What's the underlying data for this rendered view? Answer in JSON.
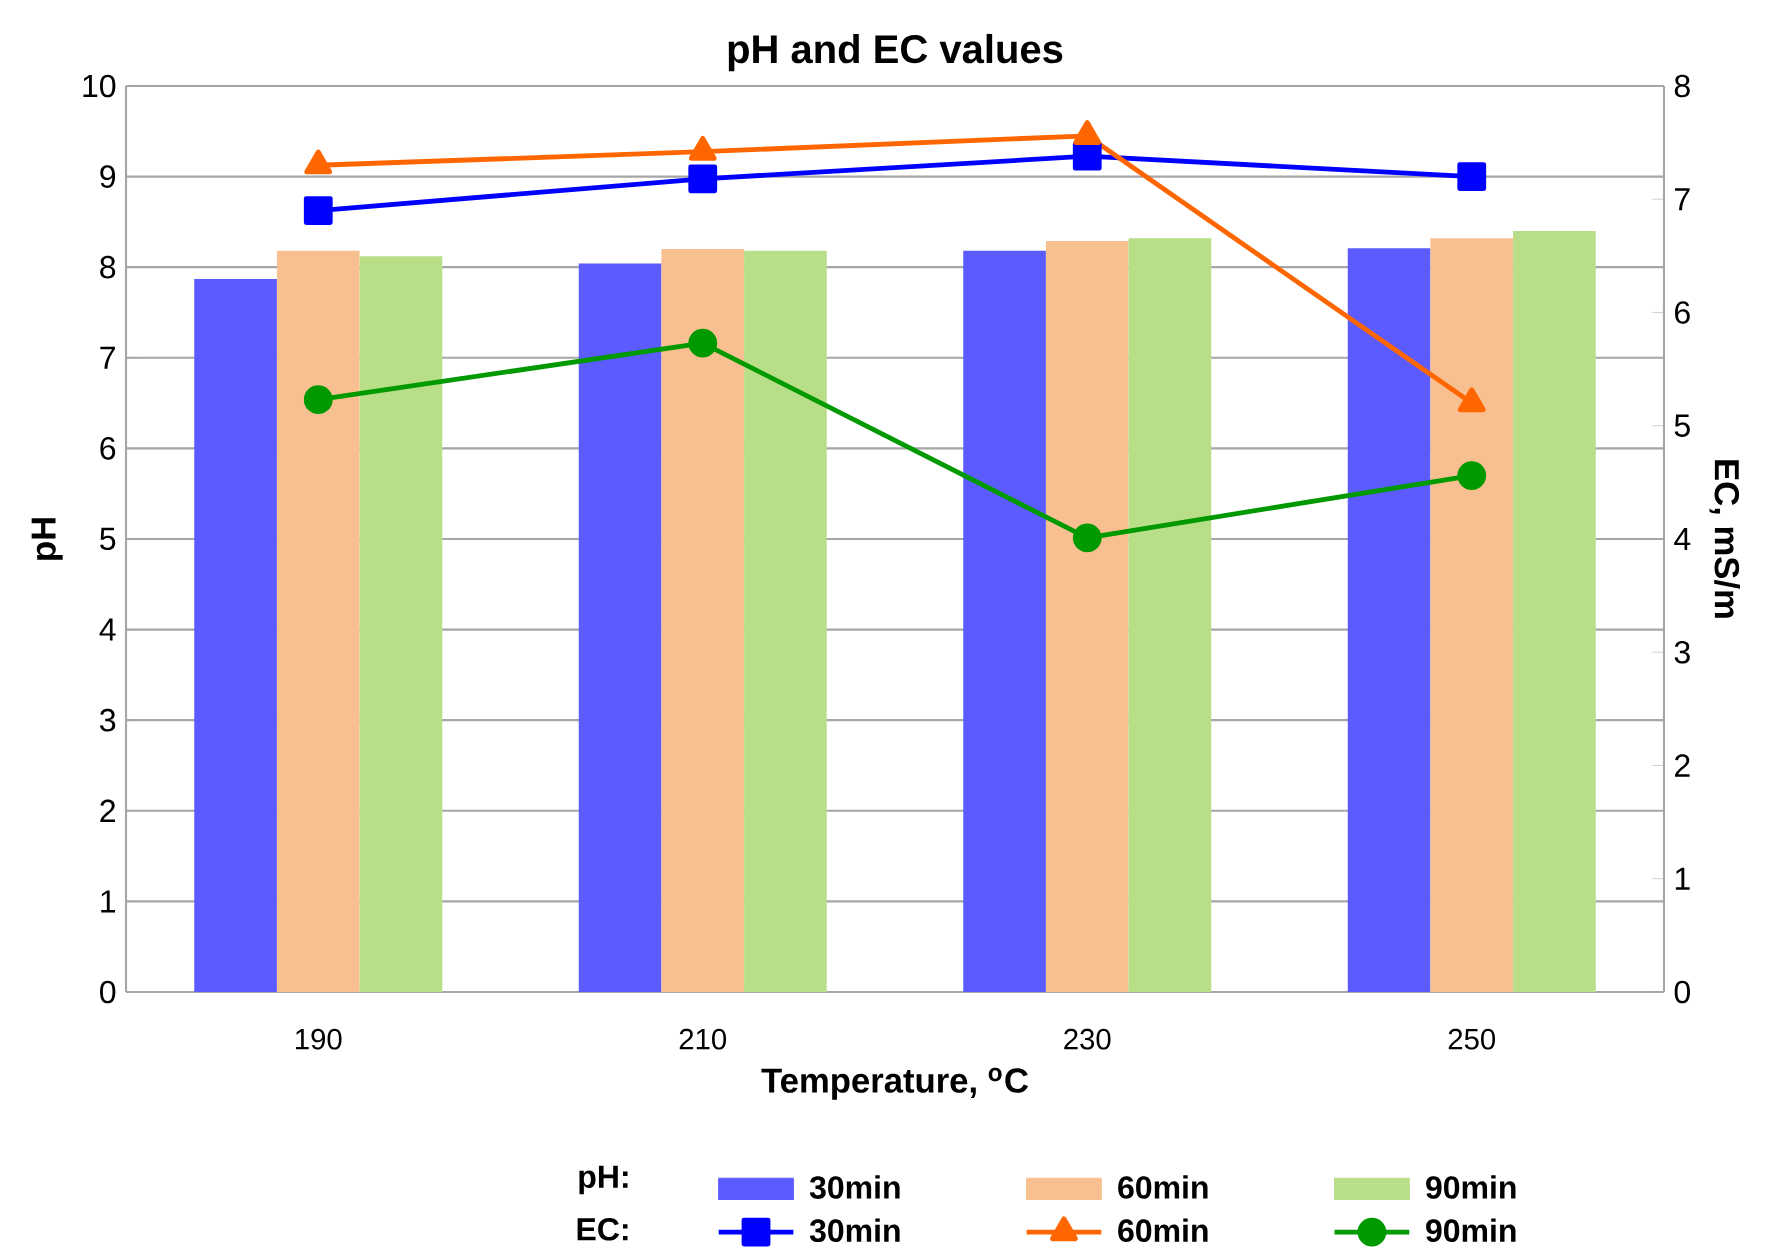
{
  "chart_data": {
    "type": "bar",
    "title": "pH and EC values",
    "xlabel": "Temperature, $^{o}$C",
    "ylabel": "pH",
    "y2label": "EC, mS/m",
    "categories": [
      "190",
      "210",
      "230",
      "250"
    ],
    "series": [
      {
        "name": "30min",
        "color": "#5b5bff",
        "values": [
          7.87,
          8.04,
          8.18,
          8.21
        ]
      },
      {
        "name": "60min",
        "color": "#f8c090",
        "values": [
          8.18,
          8.2,
          8.29,
          8.32
        ]
      },
      {
        "name": "90min",
        "color": "#b8de88",
        "values": [
          8.12,
          8.18,
          8.32,
          8.4
        ]
      },
      {
        "name": "30min",
        "type": "line",
        "axis": "y2",
        "marker": "square",
        "color": "#0000ff",
        "values": [
          6.9,
          7.18,
          7.38,
          7.2
        ]
      },
      {
        "name": "60min",
        "type": "line",
        "axis": "y2",
        "marker": "triangle",
        "color": "#ff6600",
        "values": [
          7.3,
          7.42,
          7.56,
          5.2
        ]
      },
      {
        "name": "90min",
        "type": "line",
        "axis": "y2",
        "marker": "circle",
        "color": "#009900",
        "values": [
          5.23,
          5.73,
          4.01,
          4.56
        ]
      }
    ],
    "ylim": [
      0,
      10
    ],
    "yticks": [
      0,
      1,
      2,
      3,
      4,
      5,
      6,
      7,
      8,
      9,
      10
    ],
    "y2lim": [
      0,
      8
    ],
    "y2ticks": [
      0,
      1,
      2,
      3,
      4,
      5,
      6,
      7,
      8
    ],
    "grid": "y",
    "legend": "bottom",
    "annotations": [
      "pH:",
      "EC:"
    ]
  }
}
